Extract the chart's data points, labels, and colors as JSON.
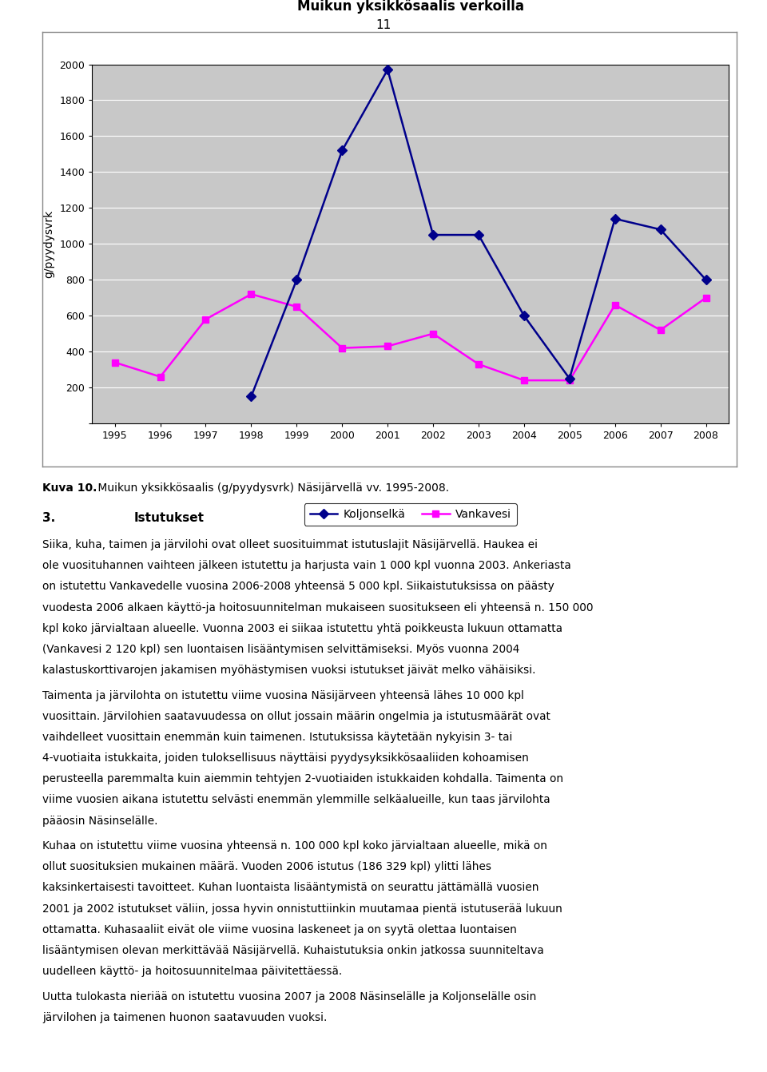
{
  "title": "Muikun yksikkösaalis verkoilla",
  "ylabel": "g/pyydysvrk",
  "years": [
    1995,
    1996,
    1997,
    1998,
    1999,
    2000,
    2001,
    2002,
    2003,
    2004,
    2005,
    2006,
    2007,
    2008
  ],
  "koljonselka": [
    null,
    null,
    null,
    150,
    800,
    1520,
    1970,
    1050,
    1050,
    600,
    250,
    1140,
    1080,
    800
  ],
  "vankavesi": [
    340,
    260,
    580,
    720,
    650,
    420,
    430,
    500,
    330,
    240,
    240,
    660,
    520,
    700
  ],
  "koljonselka_color": "#00008B",
  "vankavesi_color": "#FF00FF",
  "background_color": "#C8C8C8",
  "chart_border_color": "#808080",
  "ylim": [
    0,
    2000
  ],
  "yticks": [
    0,
    200,
    400,
    600,
    800,
    1000,
    1200,
    1400,
    1600,
    1800,
    2000
  ],
  "legend_koljonselka": "Koljonselkä",
  "legend_vankavesi": "Vankavesi",
  "caption_bold": "Kuva 10.",
  "caption_rest": " Muikun yksikkösaalis (g/pyydysvrk) Näsijärvellä vv. 1995-2008.",
  "section_number": "3.",
  "section_title": "Istutukset",
  "body_paragraphs": [
    "Siika, kuha, taimen ja järvilohi ovat olleet suosituimmat istutuslajit Näsijärvellä. Haukea ei ole vuosituhannen vaihteen jälkeen istutettu ja harjusta vain 1 000 kpl vuonna 2003. Ankeriasta on istutettu Vankavedelle vuosina 2006-2008 yhteensä 5 000 kpl. Siikaistutuksissa on päästy vuodesta 2006 alkaen käyttö-ja hoitosuunnitelman mukaiseen suositukseen eli yhteensä n. 150 000 kpl koko järvialtaan alueelle. Vuonna 2003 ei siikaa istutettu yhtä poikkeusta lukuun ottamatta (Vankavesi 2 120 kpl) sen luontaisen lisääntymisen selvittämiseksi. Myös vuonna 2004 kalastuskorttivarojen jakamisen myöhästymisen vuoksi istutukset jäivät melko vähäisiksi.",
    "Taimenta ja järvilohta on istutettu viime vuosina Näsijärveen yhteensä lähes 10 000 kpl vuosittain. Järvilohien saatavuudessa on ollut jossain määrin ongelmia ja istutusmäärät ovat vaihdelleet vuosittain enemmän kuin taimenen. Istutuksissa käytetään nykyisin 3- tai 4-vuotiaita istukkaita, joiden tuloksellisuus näyttäisi pyydysyksikkösaaliiden kohoamisen perusteella paremmalta kuin aiemmin tehtyjen 2-vuotiaiden istukkaiden kohdalla. Taimenta on viime vuosien aikana istutettu selvästi enemmän ylemmille selkäalueille, kun taas järvilohta pääosin Näsinselälle.",
    "Kuhaa on istutettu viime vuosina yhteensä n. 100 000 kpl koko järvialtaan alueelle, mikä on ollut suosituksien mukainen määrä. Vuoden 2006 istutus (186 329 kpl) ylitti lähes kaksinkertaisesti tavoitteet. Kuhan luontaista lisääntymistä on seurattu jättämällä vuosien 2001 ja 2002 istutukset väliin, jossa hyvin onnistuttiinkin muutamaa pientä istutuserää lukuun ottamatta. Kuhasaaliit eivät ole viime vuosina laskeneet ja on syytä olettaa luontaisen lisääntymisen olevan merkittävää Näsijärvellä. Kuhaistutuksia onkin jatkossa suunniteltava uudelleen käyttö- ja hoitosuunnitelmaa päivitettäessä.",
    "Uutta tulokasta nieriää on istutettu vuosina 2007 ja 2008 Näsinselälle ja Koljonselälle osin järvilohen ja taimenen huonon saatavuuden vuoksi."
  ],
  "page_number": "11"
}
